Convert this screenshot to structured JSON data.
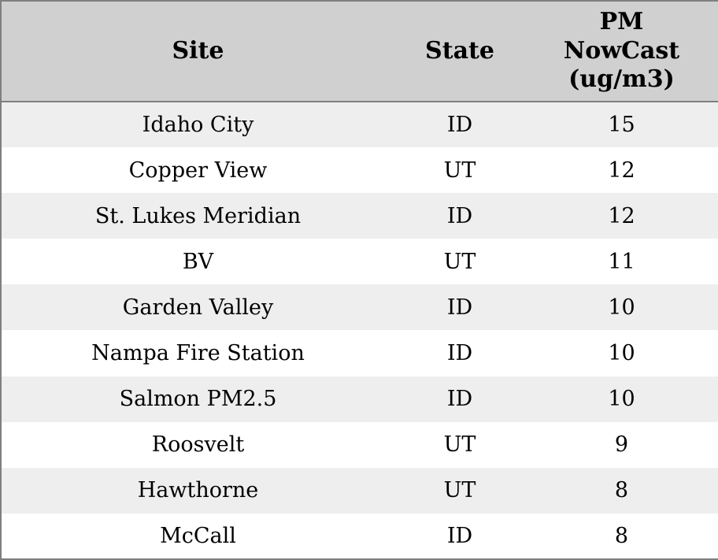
{
  "colors": {
    "border": "#7f7f7f",
    "header_bg": "#d0d0d0",
    "row_stripe_bg": "#eeeeee",
    "row_bg": "#ffffff",
    "text": "#000000"
  },
  "table": {
    "columns": [
      {
        "key": "site",
        "label": "Site"
      },
      {
        "key": "state",
        "label": "State"
      },
      {
        "key": "pm",
        "label": "PM NowCast (ug/m3)"
      }
    ],
    "rows": [
      {
        "site": "Idaho City",
        "state": "ID",
        "pm": "15"
      },
      {
        "site": "Copper View",
        "state": "UT",
        "pm": "12"
      },
      {
        "site": "St. Lukes Meridian",
        "state": "ID",
        "pm": "12"
      },
      {
        "site": "BV",
        "state": "UT",
        "pm": "11"
      },
      {
        "site": "Garden Valley",
        "state": "ID",
        "pm": "10"
      },
      {
        "site": "Nampa Fire Station",
        "state": "ID",
        "pm": "10"
      },
      {
        "site": "Salmon PM2.5",
        "state": "ID",
        "pm": "10"
      },
      {
        "site": "Roosvelt",
        "state": "UT",
        "pm": "9"
      },
      {
        "site": "Hawthorne",
        "state": "UT",
        "pm": "8"
      },
      {
        "site": "McCall",
        "state": "ID",
        "pm": "8"
      }
    ]
  },
  "chart_data": {
    "type": "table",
    "columns": [
      "Site",
      "State",
      "PM NowCast (ug/m3)"
    ],
    "rows": [
      [
        "Idaho City",
        "ID",
        15
      ],
      [
        "Copper View",
        "UT",
        12
      ],
      [
        "St. Lukes Meridian",
        "ID",
        12
      ],
      [
        "BV",
        "UT",
        11
      ],
      [
        "Garden Valley",
        "ID",
        10
      ],
      [
        "Nampa Fire Station",
        "ID",
        10
      ],
      [
        "Salmon PM2.5",
        "ID",
        10
      ],
      [
        "Roosvelt",
        "UT",
        9
      ],
      [
        "Hawthorne",
        "UT",
        8
      ],
      [
        "McCall",
        "ID",
        8
      ]
    ],
    "title": "",
    "notes": "Air-quality monitoring sites sorted by PM NowCast value descending; striped-row static data table, no gridlines between columns"
  }
}
